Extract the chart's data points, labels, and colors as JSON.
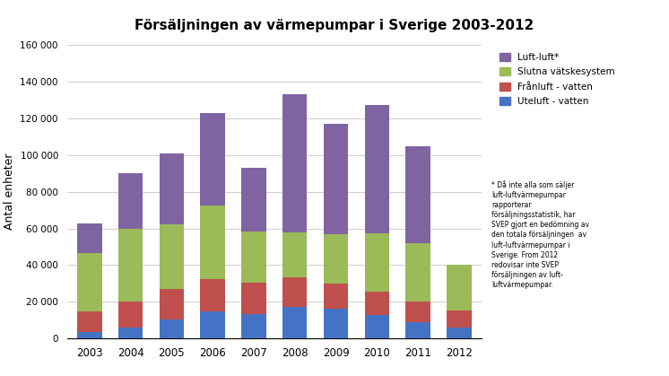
{
  "years": [
    2003,
    2004,
    2005,
    2006,
    2007,
    2008,
    2009,
    2010,
    2011,
    2012
  ],
  "uteluft_vatten": [
    3500,
    6000,
    10500,
    14500,
    13500,
    17000,
    16000,
    13000,
    9000,
    6000
  ],
  "franluft_vatten": [
    11000,
    14000,
    16500,
    18000,
    17000,
    16500,
    14000,
    12500,
    11000,
    9000
  ],
  "slutna_vatske": [
    32000,
    40000,
    35000,
    40000,
    28000,
    24500,
    27000,
    32000,
    32000,
    25000
  ],
  "luft_luft": [
    16000,
    30000,
    39000,
    50500,
    34500,
    75000,
    60000,
    70000,
    53000,
    0
  ],
  "colors": {
    "uteluft_vatten": "#4472C4",
    "franluft_vatten": "#C0504D",
    "slutna_vatske": "#9BBB59",
    "luft_luft": "#8064A2"
  },
  "legend_labels": [
    "Luft-luft*",
    "Slutna vätskesystem",
    "Frånluft - vatten",
    "Uteluft - vatten"
  ],
  "ylabel": "Antal enheter",
  "title": "Försäljningen av värmepumpar i Sverige 2003-2012",
  "ylim": [
    0,
    160000
  ],
  "yticks": [
    0,
    20000,
    40000,
    60000,
    80000,
    100000,
    120000,
    140000,
    160000
  ],
  "ytick_labels": [
    "0",
    "20 000",
    "40 000",
    "60 000",
    "80 000",
    "100 000",
    "120 000",
    "140 000",
    "160 000"
  ],
  "footnote": "* Då inte alla som säljer\nluft-luftvärmepumpar\nrapporterar\nförsäljningsstatistik, har\nSVEP gjort en bedömning av\nden totala försäljningen  av\nluft-luftvärmepumpar i\nSverige. From 2012\nredovisar inte SVEP\nförsäljningen av luft-\nluftvärmepumpar."
}
